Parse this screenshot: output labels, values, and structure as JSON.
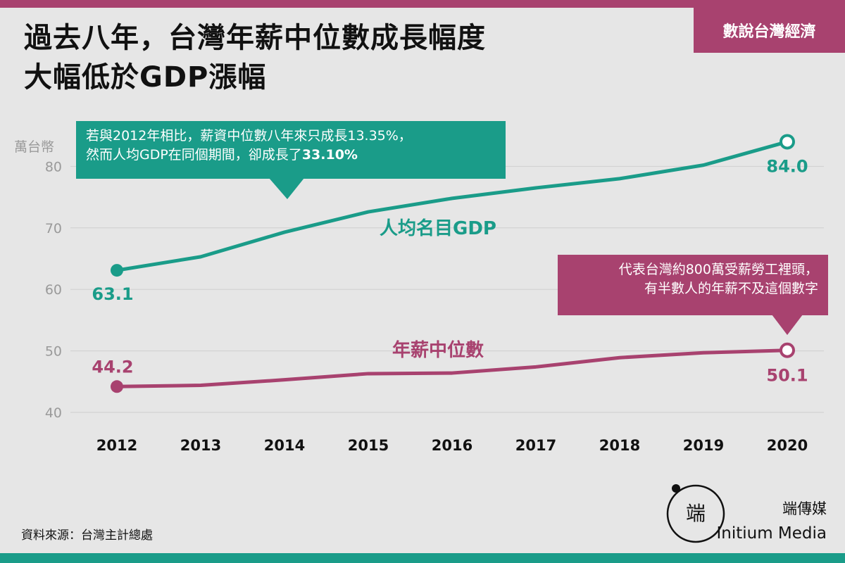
{
  "header": {
    "title_line1": "過去八年，台灣年薪中位數成長幅度",
    "title_line2": "大幅低於GDP漲幅",
    "tag": "數說台灣經濟"
  },
  "colors": {
    "gdp": "#1a9c89",
    "wage": "#a8426f",
    "top_bar": "#a8426f",
    "bottom_bar": "#1a9c89",
    "tag_bg": "#a8426f",
    "grid": "#cfcfcf",
    "tick": "#9a9a9a"
  },
  "chart_data": {
    "type": "line",
    "x": [
      "2012",
      "2013",
      "2014",
      "2015",
      "2016",
      "2017",
      "2018",
      "2019",
      "2020"
    ],
    "series": [
      {
        "name": "人均名目GDP",
        "values": [
          63.1,
          65.3,
          69.3,
          72.6,
          74.8,
          76.5,
          78.0,
          80.2,
          84.0
        ]
      },
      {
        "name": "年薪中位數",
        "values": [
          44.2,
          44.4,
          45.3,
          46.3,
          46.4,
          47.4,
          48.9,
          49.7,
          50.1
        ]
      }
    ],
    "ylabel": "萬台幣",
    "yticks": [
      40,
      50,
      60,
      70,
      80
    ],
    "ylim": [
      40,
      85
    ],
    "grid": true,
    "point_labels": {
      "gdp_start": "63.1",
      "gdp_end": "84.0",
      "wage_start": "44.2",
      "wage_end": "50.1"
    },
    "series_labels": {
      "gdp": "人均名目GDP",
      "wage": "年薪中位數"
    }
  },
  "callouts": {
    "gdp_line1": "若與2012年相比，薪資中位數八年來只成長13.35%，",
    "gdp_line2_prefix": "然而人均GDP在同個期間，卻成長了",
    "gdp_line2_bold": "33.10%",
    "wage_line1": "代表台灣約800萬受薪勞工裡頭，",
    "wage_line2": "有半數人的年薪不及這個數字"
  },
  "footer": {
    "source": "資料來源：台灣主計總處",
    "logo_glyph": "端",
    "logo_cn": "端傳媒",
    "logo_en": "Initium Media"
  }
}
